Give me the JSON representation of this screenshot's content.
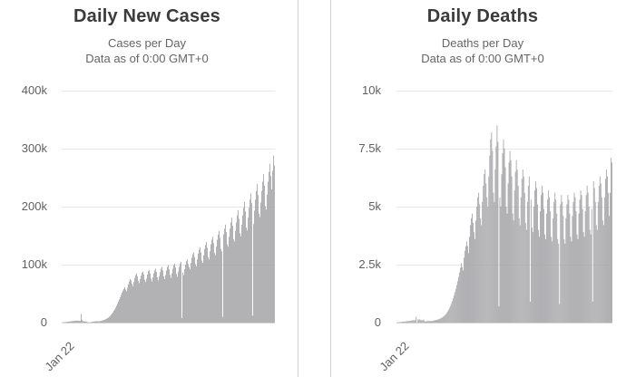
{
  "page": {
    "background": "#ffffff"
  },
  "colors": {
    "bar": "#a4a4a7",
    "gridline": "#e7e7e7",
    "axis_baseline": "#d5d5d5",
    "title_text": "#3b3b3b",
    "subtitle_text": "#656565",
    "tick_text": "#606060",
    "panel_divider": "#d2d2d2"
  },
  "chart_data": [
    {
      "type": "bar",
      "title": "Daily New Cases",
      "subtitle_line1": "Cases per Day",
      "subtitle_line2": "Data as of 0:00 GMT+0",
      "xlabel": "",
      "ylabel": "",
      "ylim": [
        0,
        400000
      ],
      "y_ticks": [
        0,
        100000,
        200000,
        300000,
        400000
      ],
      "y_tick_labels_desc": [
        "400k",
        "300k",
        "200k",
        "100k",
        "0"
      ],
      "x_tick_labels": [
        "Jan 22"
      ],
      "x_start_label": "Jan 22",
      "grid": true,
      "legend": "none",
      "values": [
        300,
        500,
        700,
        800,
        1000,
        1300,
        1600,
        1800,
        2000,
        2100,
        2400,
        2600,
        2800,
        3000,
        3100,
        3300,
        3400,
        3500,
        3400,
        3200,
        3000,
        15100,
        5100,
        2700,
        2200,
        2100,
        2000,
        1800,
        900,
        600,
        500,
        600,
        900,
        1300,
        1700,
        1900,
        2100,
        2300,
        2500,
        2400,
        2200,
        2400,
        2700,
        3100,
        3600,
        4100,
        4600,
        5200,
        5900,
        6700,
        7700,
        8800,
        10200,
        11800,
        13600,
        15600,
        17800,
        20300,
        23000,
        26000,
        29200,
        32600,
        36200,
        40000,
        43900,
        47800,
        51600,
        55200,
        58400,
        61000,
        57000,
        54000,
        60000,
        66000,
        71000,
        75000,
        73000,
        67000,
        63000,
        70000,
        77000,
        82000,
        85000,
        80000,
        72000,
        68000,
        75000,
        81000,
        86000,
        88000,
        83000,
        74000,
        70000,
        76000,
        83000,
        89000,
        91000,
        85000,
        76000,
        71000,
        78000,
        85000,
        90000,
        93000,
        87000,
        78000,
        73000,
        80000,
        87000,
        93000,
        96000,
        90000,
        80000,
        75000,
        82000,
        90000,
        96000,
        99000,
        92000,
        82000,
        77000,
        85000,
        93000,
        99000,
        102000,
        95000,
        84000,
        79000,
        88000,
        96000,
        102000,
        105000,
        8000,
        86000,
        82000,
        92000,
        100000,
        106000,
        109000,
        101000,
        96000,
        92000,
        103000,
        112000,
        118000,
        121000,
        113000,
        101000,
        97000,
        109000,
        119000,
        126000,
        130000,
        121000,
        107000,
        103000,
        116000,
        127000,
        134000,
        139000,
        129000,
        113000,
        109000,
        123000,
        135000,
        143000,
        148000,
        137000,
        120000,
        116000,
        131000,
        143000,
        152000,
        158000,
        146000,
        127000,
        123000,
        10000,
        152000,
        162000,
        169000,
        156000,
        135000,
        131000,
        148000,
        162000,
        173000,
        181000,
        167000,
        144000,
        140000,
        158000,
        173000,
        185000,
        194000,
        179000,
        154000,
        149000,
        169000,
        185000,
        198000,
        208000,
        192000,
        164000,
        159000,
        181000,
        198000,
        212000,
        223000,
        206000,
        12000,
        170000,
        193000,
        212000,
        227000,
        239000,
        220000,
        188000,
        182000,
        207000,
        227000,
        243000,
        256000,
        236000,
        201000,
        195000,
        221000,
        243000,
        260000,
        274000,
        253000,
        230000,
        262000,
        288000,
        271000
      ]
    },
    {
      "type": "bar",
      "title": "Daily Deaths",
      "subtitle_line1": "Deaths per Day",
      "subtitle_line2": "Data as of 0:00 GMT+0",
      "xlabel": "",
      "ylabel": "",
      "ylim": [
        0,
        10000
      ],
      "y_ticks": [
        0,
        2500,
        5000,
        7500,
        10000
      ],
      "y_tick_labels_desc": [
        "10k",
        "7.5k",
        "5k",
        "2.5k",
        "0"
      ],
      "x_tick_labels": [
        "Jan 22"
      ],
      "x_start_label": "Jan 22",
      "grid": true,
      "legend": "none",
      "values": [
        11,
        16,
        15,
        24,
        26,
        26,
        38,
        43,
        46,
        45,
        57,
        64,
        66,
        73,
        73,
        86,
        89,
        97,
        108,
        97,
        108,
        254,
        13,
        146,
        122,
        143,
        106,
        105,
        98,
        136,
        71,
        52,
        45,
        75,
        68,
        72,
        64,
        79,
        65,
        73,
        96,
        98,
        102,
        112,
        124,
        140,
        155,
        172,
        192,
        215,
        242,
        274,
        312,
        356,
        408,
        470,
        540,
        620,
        710,
        810,
        920,
        1040,
        1170,
        1310,
        1460,
        1620,
        1790,
        1970,
        2160,
        2360,
        2570,
        2400,
        2250,
        2800,
        3100,
        3300,
        3500,
        3300,
        3000,
        3700,
        4200,
        4500,
        4700,
        4300,
        3900,
        3600,
        4400,
        5000,
        5400,
        5600,
        5100,
        4500,
        4200,
        5200,
        5900,
        6400,
        6600,
        6000,
        5400,
        5000,
        6300,
        7200,
        7900,
        8200,
        7400,
        5600,
        5200,
        6600,
        7600,
        8500,
        7800,
        700,
        5400,
        5000,
        6400,
        7300,
        7900,
        7500,
        6700,
        5000,
        4700,
        6000,
        6900,
        7400,
        7000,
        6300,
        4700,
        4400,
        5700,
        6500,
        7000,
        6600,
        5900,
        4500,
        4200,
        5400,
        6200,
        6600,
        6300,
        5600,
        4300,
        4000,
        5200,
        5900,
        6300,
        900,
        5300,
        4100,
        3900,
        5000,
        5700,
        6100,
        5800,
        5100,
        4000,
        3700,
        4800,
        5500,
        5900,
        5600,
        4900,
        3800,
        3600,
        4700,
        5300,
        5700,
        5400,
        4800,
        3700,
        3500,
        4500,
        5200,
        5600,
        5300,
        4700,
        3600,
        3400,
        800,
        5100,
        5500,
        5200,
        4600,
        3600,
        3400,
        4500,
        5100,
        5500,
        5300,
        4700,
        3700,
        3500,
        4600,
        5200,
        5600,
        5400,
        4800,
        3800,
        3600,
        4700,
        5300,
        5700,
        5500,
        4900,
        3900,
        3700,
        4800,
        5500,
        5900,
        5600,
        5000,
        4000,
        3800,
        4900,
        900,
        6100,
        5800,
        5200,
        4200,
        4000,
        5200,
        5900,
        6300,
        6000,
        5400,
        4400,
        4200,
        5400,
        6200,
        6600,
        6300,
        5600,
        4600,
        5600,
        7100,
        6900
      ]
    }
  ]
}
